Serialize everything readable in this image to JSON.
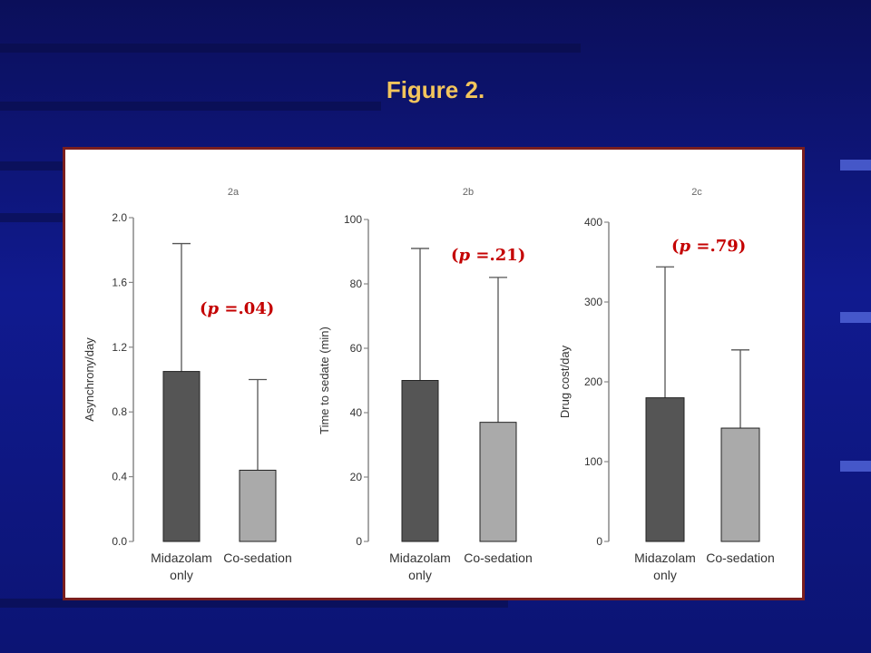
{
  "slide": {
    "title": "Figure 2."
  },
  "chart_data": [
    {
      "type": "bar",
      "panel_label": "2a",
      "categories": [
        [
          "Midazolam",
          "only"
        ],
        [
          "Co-sedation"
        ]
      ],
      "values": [
        1.05,
        0.44
      ],
      "error_upper": [
        1.84,
        1.0
      ],
      "ylabel": "Asynchrony/day",
      "ylim": [
        0,
        2.0
      ],
      "yticks": [
        "0.0",
        "0.4",
        "0.8",
        "1.2",
        "1.6",
        "2.0"
      ],
      "annotation": {
        "p_symbol": "p",
        "prefix": "(",
        "suffix": " =.04)"
      },
      "bar_colors": [
        "#555555",
        "#aaaaaa"
      ]
    },
    {
      "type": "bar",
      "panel_label": "2b",
      "categories": [
        [
          "Midazolam",
          "only"
        ],
        [
          "Co-sedation"
        ]
      ],
      "values": [
        50,
        37
      ],
      "error_upper": [
        91,
        82
      ],
      "ylabel": "Time to sedate (min)",
      "ylim": [
        0,
        100
      ],
      "yticks": [
        "0",
        "20",
        "40",
        "60",
        "80",
        "100"
      ],
      "annotation": {
        "p_symbol": "p",
        "prefix": "(",
        "suffix": " =.21)"
      },
      "bar_colors": [
        "#555555",
        "#aaaaaa"
      ]
    },
    {
      "type": "bar",
      "panel_label": "2c",
      "categories": [
        [
          "Midazolam",
          "only"
        ],
        [
          "Co-sedation"
        ]
      ],
      "values": [
        180,
        142
      ],
      "error_upper": [
        344,
        240
      ],
      "ylabel": "Drug cost/day",
      "ylim": [
        0,
        400
      ],
      "yticks": [
        "0",
        "100",
        "200",
        "300",
        "400"
      ],
      "annotation": {
        "p_symbol": "p",
        "prefix": "(",
        "suffix": " =.79)"
      },
      "bar_colors": [
        "#555555",
        "#aaaaaa"
      ]
    }
  ]
}
